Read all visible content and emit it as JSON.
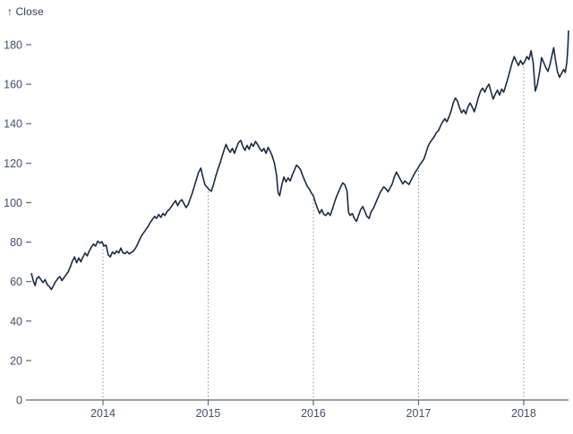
{
  "colors": {
    "line": "#1a2b42",
    "axis": "#5d6876",
    "tick_text": "#42506a",
    "title_text": "#303c50",
    "dropline": "#848d97",
    "background": "#ffffff"
  },
  "chart_data": {
    "type": "line",
    "title": "↑ Close",
    "ylabel": "Close",
    "xlabel": "",
    "legend": "none",
    "grid": "dotted-vertical-droplines-at-year-ticks",
    "x_ticks": [
      2014,
      2015,
      2016,
      2017,
      2018
    ],
    "x_tick_labels": [
      "2014",
      "2015",
      "2016",
      "2017",
      "2018"
    ],
    "y_ticks": [
      0,
      20,
      40,
      60,
      80,
      100,
      120,
      140,
      160,
      180
    ],
    "y_tick_labels": [
      "0",
      "20",
      "40",
      "60",
      "80",
      "100",
      "120",
      "140",
      "160",
      "180"
    ],
    "xlim": [
      2013.319,
      2018.426
    ],
    "ylim": [
      0,
      180
    ],
    "rule_tops": {
      "2014": 80,
      "2015": 107.5,
      "2016": 103.5,
      "2017": 118,
      "2018": 171
    },
    "series": [
      {
        "name": "Close",
        "points": [
          [
            2013.32,
            64
          ],
          [
            2013.34,
            60
          ],
          [
            2013.355,
            58
          ],
          [
            2013.37,
            61.5
          ],
          [
            2013.39,
            62.5
          ],
          [
            2013.41,
            61
          ],
          [
            2013.43,
            59.5
          ],
          [
            2013.45,
            61
          ],
          [
            2013.47,
            58.5
          ],
          [
            2013.49,
            57.5
          ],
          [
            2013.51,
            56
          ],
          [
            2013.53,
            58
          ],
          [
            2013.55,
            60
          ],
          [
            2013.57,
            61.5
          ],
          [
            2013.59,
            62.5
          ],
          [
            2013.61,
            60.5
          ],
          [
            2013.63,
            62
          ],
          [
            2013.65,
            63.5
          ],
          [
            2013.67,
            65
          ],
          [
            2013.69,
            67.5
          ],
          [
            2013.71,
            70.5
          ],
          [
            2013.73,
            72.5
          ],
          [
            2013.75,
            69.5
          ],
          [
            2013.77,
            72
          ],
          [
            2013.79,
            70
          ],
          [
            2013.81,
            72.5
          ],
          [
            2013.83,
            74.5
          ],
          [
            2013.85,
            73
          ],
          [
            2013.87,
            75.5
          ],
          [
            2013.89,
            77.5
          ],
          [
            2013.91,
            79
          ],
          [
            2013.93,
            78
          ],
          [
            2013.95,
            80.5
          ],
          [
            2013.97,
            79.5
          ],
          [
            2013.99,
            80.2
          ],
          [
            2014.01,
            78
          ],
          [
            2014.03,
            78.5
          ],
          [
            2014.05,
            73.5
          ],
          [
            2014.07,
            72.5
          ],
          [
            2014.09,
            75
          ],
          [
            2014.11,
            74
          ],
          [
            2014.13,
            75.5
          ],
          [
            2014.15,
            74.5
          ],
          [
            2014.17,
            77
          ],
          [
            2014.19,
            74.5
          ],
          [
            2014.21,
            74.2
          ],
          [
            2014.23,
            75.2
          ],
          [
            2014.25,
            74
          ],
          [
            2014.27,
            74.8
          ],
          [
            2014.29,
            75.5
          ],
          [
            2014.31,
            77
          ],
          [
            2014.33,
            79
          ],
          [
            2014.35,
            81.5
          ],
          [
            2014.37,
            83.5
          ],
          [
            2014.39,
            85
          ],
          [
            2014.41,
            86.5
          ],
          [
            2014.43,
            88
          ],
          [
            2014.45,
            90
          ],
          [
            2014.47,
            91.5
          ],
          [
            2014.49,
            93
          ],
          [
            2014.51,
            92
          ],
          [
            2014.53,
            94
          ],
          [
            2014.55,
            92.5
          ],
          [
            2014.57,
            94.5
          ],
          [
            2014.59,
            93.5
          ],
          [
            2014.61,
            95.5
          ],
          [
            2014.63,
            96.5
          ],
          [
            2014.65,
            98
          ],
          [
            2014.67,
            99.5
          ],
          [
            2014.69,
            101
          ],
          [
            2014.71,
            98.5
          ],
          [
            2014.73,
            100.5
          ],
          [
            2014.75,
            101.5
          ],
          [
            2014.77,
            99.5
          ],
          [
            2014.79,
            97.5
          ],
          [
            2014.81,
            99
          ],
          [
            2014.83,
            102
          ],
          [
            2014.85,
            105
          ],
          [
            2014.87,
            108.5
          ],
          [
            2014.89,
            112
          ],
          [
            2014.91,
            115.5
          ],
          [
            2014.93,
            117.5
          ],
          [
            2014.95,
            113
          ],
          [
            2014.97,
            109
          ],
          [
            2014.99,
            107.8
          ],
          [
            2015.01,
            106.5
          ],
          [
            2015.03,
            105.8
          ],
          [
            2015.05,
            109
          ],
          [
            2015.07,
            113
          ],
          [
            2015.09,
            116.5
          ],
          [
            2015.11,
            119.5
          ],
          [
            2015.13,
            123
          ],
          [
            2015.15,
            126.5
          ],
          [
            2015.17,
            129.5
          ],
          [
            2015.19,
            127
          ],
          [
            2015.21,
            125.5
          ],
          [
            2015.23,
            127.5
          ],
          [
            2015.25,
            125
          ],
          [
            2015.27,
            128
          ],
          [
            2015.29,
            130.5
          ],
          [
            2015.31,
            131.5
          ],
          [
            2015.33,
            128.5
          ],
          [
            2015.35,
            126.5
          ],
          [
            2015.37,
            129
          ],
          [
            2015.39,
            127
          ],
          [
            2015.41,
            130
          ],
          [
            2015.43,
            128.5
          ],
          [
            2015.45,
            131
          ],
          [
            2015.47,
            129.5
          ],
          [
            2015.49,
            127.5
          ],
          [
            2015.51,
            126
          ],
          [
            2015.53,
            127.5
          ],
          [
            2015.55,
            125
          ],
          [
            2015.57,
            128
          ],
          [
            2015.59,
            126
          ],
          [
            2015.61,
            123.5
          ],
          [
            2015.63,
            120
          ],
          [
            2015.65,
            114
          ],
          [
            2015.665,
            105
          ],
          [
            2015.68,
            103.5
          ],
          [
            2015.7,
            109
          ],
          [
            2015.72,
            113
          ],
          [
            2015.74,
            110.5
          ],
          [
            2015.76,
            112.5
          ],
          [
            2015.78,
            111
          ],
          [
            2015.8,
            114
          ],
          [
            2015.82,
            116.5
          ],
          [
            2015.84,
            119
          ],
          [
            2015.86,
            118
          ],
          [
            2015.88,
            116.5
          ],
          [
            2015.9,
            113.5
          ],
          [
            2015.92,
            111
          ],
          [
            2015.94,
            108.5
          ],
          [
            2015.96,
            107
          ],
          [
            2015.98,
            105
          ],
          [
            2016.0,
            103.5
          ],
          [
            2016.02,
            100
          ],
          [
            2016.04,
            97
          ],
          [
            2016.06,
            94.5
          ],
          [
            2016.08,
            96.5
          ],
          [
            2016.1,
            94
          ],
          [
            2016.12,
            93.5
          ],
          [
            2016.14,
            95
          ],
          [
            2016.16,
            93.5
          ],
          [
            2016.18,
            96.5
          ],
          [
            2016.2,
            100
          ],
          [
            2016.22,
            103
          ],
          [
            2016.24,
            105.5
          ],
          [
            2016.26,
            108
          ],
          [
            2016.28,
            110
          ],
          [
            2016.3,
            109
          ],
          [
            2016.32,
            106
          ],
          [
            2016.335,
            95
          ],
          [
            2016.35,
            93.5
          ],
          [
            2016.37,
            94.5
          ],
          [
            2016.39,
            92
          ],
          [
            2016.41,
            90.5
          ],
          [
            2016.43,
            93.5
          ],
          [
            2016.45,
            96.5
          ],
          [
            2016.47,
            98
          ],
          [
            2016.49,
            95.5
          ],
          [
            2016.51,
            93
          ],
          [
            2016.53,
            92
          ],
          [
            2016.55,
            95.5
          ],
          [
            2016.57,
            97
          ],
          [
            2016.59,
            99.5
          ],
          [
            2016.61,
            102
          ],
          [
            2016.63,
            104.5
          ],
          [
            2016.65,
            106.5
          ],
          [
            2016.67,
            108
          ],
          [
            2016.69,
            107
          ],
          [
            2016.71,
            105.5
          ],
          [
            2016.73,
            107.5
          ],
          [
            2016.75,
            109.5
          ],
          [
            2016.77,
            113
          ],
          [
            2016.79,
            115.5
          ],
          [
            2016.81,
            113.5
          ],
          [
            2016.83,
            111.5
          ],
          [
            2016.85,
            109.5
          ],
          [
            2016.87,
            111
          ],
          [
            2016.89,
            110
          ],
          [
            2016.91,
            109.2
          ],
          [
            2016.93,
            111.5
          ],
          [
            2016.95,
            113.5
          ],
          [
            2016.97,
            115.5
          ],
          [
            2016.99,
            117
          ],
          [
            2017.01,
            119
          ],
          [
            2017.03,
            120.5
          ],
          [
            2017.05,
            122
          ],
          [
            2017.07,
            125
          ],
          [
            2017.09,
            128.5
          ],
          [
            2017.11,
            130.5
          ],
          [
            2017.13,
            132
          ],
          [
            2017.15,
            133.5
          ],
          [
            2017.17,
            135.5
          ],
          [
            2017.19,
            136.5
          ],
          [
            2017.21,
            139
          ],
          [
            2017.23,
            141
          ],
          [
            2017.25,
            142.5
          ],
          [
            2017.27,
            141
          ],
          [
            2017.29,
            143.5
          ],
          [
            2017.31,
            146.5
          ],
          [
            2017.33,
            150.5
          ],
          [
            2017.35,
            153
          ],
          [
            2017.37,
            151.5
          ],
          [
            2017.39,
            148
          ],
          [
            2017.41,
            145.5
          ],
          [
            2017.43,
            147
          ],
          [
            2017.45,
            145
          ],
          [
            2017.47,
            148.5
          ],
          [
            2017.49,
            150.5
          ],
          [
            2017.51,
            148.5
          ],
          [
            2017.53,
            146
          ],
          [
            2017.55,
            149.5
          ],
          [
            2017.57,
            153.5
          ],
          [
            2017.59,
            156.5
          ],
          [
            2017.61,
            158
          ],
          [
            2017.63,
            156
          ],
          [
            2017.65,
            158.5
          ],
          [
            2017.67,
            160
          ],
          [
            2017.69,
            156
          ],
          [
            2017.71,
            152.5
          ],
          [
            2017.73,
            155
          ],
          [
            2017.75,
            157
          ],
          [
            2017.77,
            154.5
          ],
          [
            2017.79,
            157.5
          ],
          [
            2017.81,
            156
          ],
          [
            2017.83,
            159.5
          ],
          [
            2017.85,
            163
          ],
          [
            2017.87,
            167
          ],
          [
            2017.89,
            171
          ],
          [
            2017.91,
            174
          ],
          [
            2017.93,
            171.5
          ],
          [
            2017.95,
            169.5
          ],
          [
            2017.97,
            172
          ],
          [
            2017.99,
            170
          ],
          [
            2018.01,
            171.5
          ],
          [
            2018.03,
            174
          ],
          [
            2018.05,
            172.5
          ],
          [
            2018.07,
            177
          ],
          [
            2018.09,
            171
          ],
          [
            2018.11,
            156.5
          ],
          [
            2018.13,
            160
          ],
          [
            2018.15,
            166
          ],
          [
            2018.17,
            173.5
          ],
          [
            2018.19,
            171
          ],
          [
            2018.21,
            168.5
          ],
          [
            2018.23,
            166.5
          ],
          [
            2018.25,
            170
          ],
          [
            2018.27,
            175
          ],
          [
            2018.285,
            178.5
          ],
          [
            2018.3,
            173
          ],
          [
            2018.32,
            166.5
          ],
          [
            2018.34,
            163.5
          ],
          [
            2018.36,
            165.5
          ],
          [
            2018.38,
            167.5
          ],
          [
            2018.395,
            166
          ],
          [
            2018.41,
            171
          ],
          [
            2018.42,
            179
          ],
          [
            2018.426,
            187
          ]
        ]
      }
    ]
  }
}
